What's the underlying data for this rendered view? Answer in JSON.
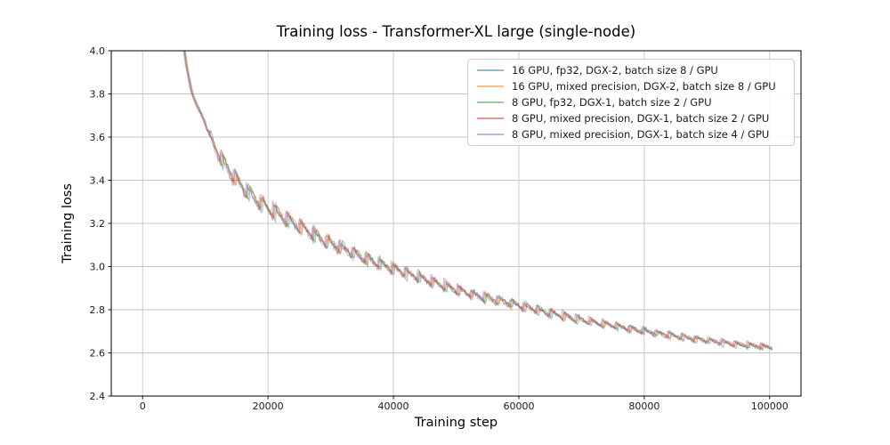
{
  "figure": {
    "title": "Training loss - Transformer-XL large (single-node)",
    "xlabel": "Training step",
    "ylabel": "Training loss"
  },
  "chart_data": {
    "type": "line",
    "title": "Training loss - Transformer-XL large (single-node)",
    "xlabel": "Training step",
    "ylabel": "Training loss",
    "xlim": [
      -5000,
      105000
    ],
    "ylim": [
      2.4,
      4.0
    ],
    "x_ticks": [
      0,
      20000,
      40000,
      60000,
      80000,
      100000
    ],
    "x_tick_labels": [
      "0",
      "20000",
      "40000",
      "60000",
      "80000",
      "100000"
    ],
    "y_ticks": [
      4.0,
      3.8,
      3.6,
      3.4,
      3.2,
      3.0,
      2.8,
      2.6,
      2.4
    ],
    "y_tick_labels": [
      "4.0",
      "3.8",
      "3.6",
      "3.4",
      "3.2",
      "3.0",
      "2.8",
      "2.6",
      "2.4"
    ],
    "grid": true,
    "legend_position": "upper right",
    "line_alpha": 0.45,
    "line_width": 1.1,
    "series": [
      {
        "name": "16 GPU, fp32, DGX-2, batch size 8 / GPU",
        "color": "#1f77b4"
      },
      {
        "name": "16 GPU, mixed precision, DGX-2, batch size 8 / GPU",
        "color": "#ff7f0e"
      },
      {
        "name": "8 GPU, fp32, DGX-1, batch size 2 / GPU",
        "color": "#2ca02c"
      },
      {
        "name": "8 GPU, mixed precision, DGX-1, batch size 2 / GPU",
        "color": "#d62728"
      },
      {
        "name": "8 GPU, mixed precision, DGX-1, batch size 4 / GPU",
        "color": "#9467bd"
      }
    ],
    "series_step_offsets": [
      -260,
      -130,
      0,
      130,
      260
    ],
    "x_start": 6200,
    "x_end": 100500,
    "trend": {
      "steps": [
        6200,
        7000,
        7800,
        8600,
        9300,
        10000,
        11000,
        12000,
        13000,
        14500,
        16000,
        17500,
        19000,
        20500,
        22000,
        24000,
        26000,
        28000,
        30000,
        32000,
        34000,
        36000,
        38000,
        40000,
        42500,
        45000,
        47500,
        50000,
        53000,
        56000,
        60000,
        64000,
        68000,
        72000,
        76000,
        80000,
        84000,
        88000,
        92000,
        96000,
        100500
      ],
      "loss": [
        4.1,
        3.93,
        3.81,
        3.75,
        3.71,
        3.66,
        3.585,
        3.525,
        3.475,
        3.415,
        3.365,
        3.325,
        3.29,
        3.26,
        3.235,
        3.2,
        3.165,
        3.135,
        3.105,
        3.08,
        3.055,
        3.03,
        3.01,
        2.99,
        2.965,
        2.94,
        2.915,
        2.89,
        2.865,
        2.845,
        2.82,
        2.79,
        2.765,
        2.74,
        2.72,
        2.7,
        2.68,
        2.665,
        2.65,
        2.635,
        2.625
      ]
    },
    "oscillation": {
      "period_steps": 2100,
      "ramp_start_step": 9000,
      "ramp_len_steps": 2800,
      "amplitude_by_step": {
        "steps": [
          6200,
          9500,
          11000,
          13000,
          18000,
          24000,
          30000,
          38000,
          46000,
          54000,
          62000,
          70000,
          80000,
          90000,
          100500
        ],
        "amp": [
          0.012,
          0.02,
          0.055,
          0.075,
          0.072,
          0.065,
          0.06,
          0.052,
          0.047,
          0.042,
          0.037,
          0.033,
          0.028,
          0.025,
          0.022
        ]
      }
    }
  },
  "style": {
    "grid_color": "#c6c6c6",
    "spine_color": "#000000",
    "tick_label_color": "#1a1a1a",
    "legend_border_color": "#cccccc"
  }
}
